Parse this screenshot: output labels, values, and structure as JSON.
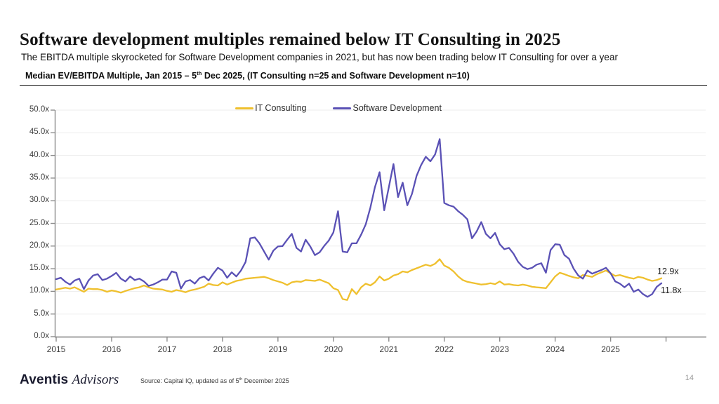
{
  "header": {
    "title": "Software development multiples remained below IT Consulting in 2025",
    "subtitle": "The EBITDA multiple skyrocketed for Software Development companies in 2021, but has now been trading below IT Consulting for over a year",
    "note_prefix": "Median EV/EBITDA Multiple, Jan 2015 – 5",
    "note_sup": "th",
    "note_suffix": " Dec 2025, (IT Consulting n=25 and Software Development n=10)"
  },
  "chart_data": {
    "type": "line",
    "title": "Median EV/EBITDA Multiple, Jan 2015 - 5th Dec 2025, (IT Consulting n=25 and Software Development n=10)",
    "x_unit": "month",
    "x_range": [
      "Jan 2015",
      "Dec 2025"
    ],
    "x_tick_labels": [
      "2015",
      "2016",
      "2017",
      "2018",
      "2019",
      "2020",
      "2021",
      "2022",
      "2023",
      "2024",
      "2025"
    ],
    "ylim": [
      0,
      50
    ],
    "y_tick_step": 5,
    "y_tick_labels": [
      "50.0x",
      "45.0x",
      "40.0x",
      "35.0x",
      "30.0x",
      "25.0x",
      "20.0x",
      "15.0x",
      "10.0x",
      "5.0x",
      "0.0x"
    ],
    "grid": "horizontal",
    "legend_position": "top-center",
    "series": [
      {
        "name": "IT Consulting",
        "color": "#EFC02E",
        "end_label": "12.9x",
        "values": [
          10.4,
          10.6,
          10.8,
          10.6,
          10.9,
          10.4,
          9.9,
          10.6,
          10.5,
          10.5,
          10.3,
          9.9,
          10.2,
          10.0,
          9.7,
          10.1,
          10.4,
          10.7,
          10.9,
          11.3,
          10.9,
          10.6,
          10.5,
          10.4,
          10.1,
          9.9,
          10.3,
          10.1,
          9.8,
          10.2,
          10.4,
          10.7,
          11.0,
          11.7,
          11.4,
          11.3,
          12.0,
          11.5,
          11.9,
          12.3,
          12.5,
          12.8,
          12.9,
          13.0,
          13.1,
          13.2,
          12.9,
          12.5,
          12.2,
          11.9,
          11.4,
          12.0,
          12.2,
          12.1,
          12.5,
          12.4,
          12.3,
          12.6,
          12.2,
          11.8,
          10.7,
          10.3,
          8.3,
          8.1,
          10.5,
          9.4,
          10.9,
          11.7,
          11.3,
          12.0,
          13.3,
          12.4,
          12.8,
          13.5,
          13.8,
          14.4,
          14.2,
          14.7,
          15.1,
          15.5,
          15.9,
          15.6,
          16.1,
          17.1,
          15.7,
          15.2,
          14.4,
          13.3,
          12.5,
          12.1,
          11.9,
          11.7,
          11.5,
          11.6,
          11.8,
          11.6,
          12.2,
          11.5,
          11.6,
          11.4,
          11.3,
          11.5,
          11.3,
          11.0,
          10.9,
          10.8,
          10.7,
          12.0,
          13.3,
          14.1,
          13.8,
          13.4,
          13.1,
          12.9,
          13.6,
          13.4,
          13.2,
          13.8,
          14.2,
          14.6,
          14.0,
          13.4,
          13.6,
          13.3,
          13.0,
          12.8,
          13.2,
          13.0,
          12.6,
          12.3,
          12.5,
          12.9
        ]
      },
      {
        "name": "Software Development",
        "color": "#5A51B5",
        "end_label": "11.8x",
        "values": [
          12.7,
          13.0,
          12.1,
          11.5,
          12.4,
          12.8,
          10.5,
          12.4,
          13.5,
          13.8,
          12.5,
          12.8,
          13.4,
          14.1,
          12.8,
          12.2,
          13.3,
          12.5,
          12.8,
          12.2,
          11.2,
          11.5,
          12.0,
          12.6,
          12.6,
          14.4,
          14.1,
          10.6,
          12.2,
          12.5,
          11.7,
          12.9,
          13.3,
          12.4,
          13.9,
          15.2,
          14.6,
          13.0,
          14.2,
          13.3,
          14.6,
          16.5,
          21.7,
          21.9,
          20.6,
          18.8,
          17.0,
          19.0,
          19.9,
          20.0,
          21.4,
          22.7,
          19.6,
          18.8,
          21.4,
          19.9,
          18.0,
          18.6,
          20.0,
          21.2,
          23.0,
          27.7,
          18.8,
          18.6,
          20.6,
          20.6,
          22.5,
          24.8,
          28.5,
          33.0,
          36.3,
          27.9,
          33.0,
          38.1,
          30.8,
          34.0,
          29.0,
          31.5,
          35.5,
          37.9,
          39.7,
          38.7,
          40.2,
          43.6,
          29.5,
          29.0,
          28.7,
          27.7,
          26.9,
          25.9,
          21.7,
          23.2,
          25.3,
          22.7,
          21.7,
          22.9,
          20.4,
          19.3,
          19.6,
          18.3,
          16.5,
          15.4,
          14.9,
          15.2,
          15.9,
          16.2,
          14.1,
          19.1,
          20.4,
          20.3,
          18.0,
          17.2,
          15.0,
          13.5,
          12.8,
          14.6,
          13.9,
          14.3,
          14.7,
          15.2,
          14.0,
          12.2,
          11.7,
          10.9,
          11.7,
          9.9,
          10.4,
          9.4,
          8.8,
          9.4,
          11.0,
          11.8
        ]
      }
    ]
  },
  "footer": {
    "brand_regular": "Aventis",
    "brand_italic": "Advisors",
    "source_prefix": "Source: Capital IQ, updated as of 5",
    "source_sup": "th",
    "source_suffix": " December 2025",
    "page_number": "14"
  }
}
